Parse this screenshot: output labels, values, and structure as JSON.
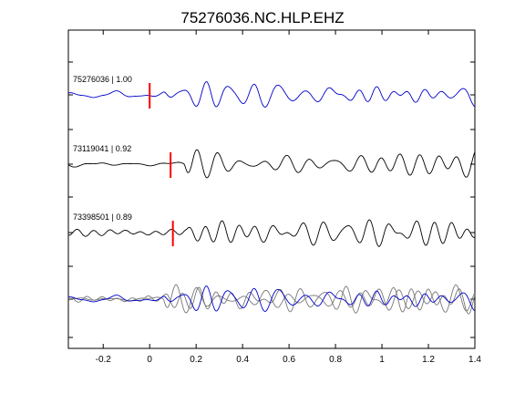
{
  "chart_data": {
    "type": "line",
    "title": "75276036.NC.HLP.EHZ",
    "xlabel": "",
    "ylabel": "",
    "xlim": [
      -0.35,
      1.4
    ],
    "x_ticks": [
      -0.2,
      0,
      0.2,
      0.4,
      0.6,
      0.8,
      1,
      1.2,
      1.4
    ],
    "x_tick_labels": [
      "-0.2",
      "0",
      "0.2",
      "0.4",
      "0.6",
      "0.8",
      "1",
      "1.2",
      "1.4"
    ],
    "grid": false,
    "legend": "none",
    "colors": {
      "reference": "#0000cc",
      "other": "#000000",
      "overlay_other": "#777777",
      "pick": "#ff0000"
    },
    "traces": [
      {
        "name": "75276036",
        "correlation": "1.00",
        "label": "75276036 | 1.00",
        "pick_time": 0.0,
        "lag": 0.0,
        "color": "#0000cc"
      },
      {
        "name": "73119041",
        "correlation": "0.92",
        "label": "73119041 | 0.92",
        "pick_time": 0.09,
        "lag": 0.09,
        "color": "#000000"
      },
      {
        "name": "73398501",
        "correlation": "0.89",
        "label": "73398501 | 0.89",
        "pick_time": 0.1,
        "lag": 0.1,
        "color": "#000000"
      }
    ],
    "overlay": {
      "description": "aligned overlay of all traces",
      "reference": "75276036"
    }
  }
}
